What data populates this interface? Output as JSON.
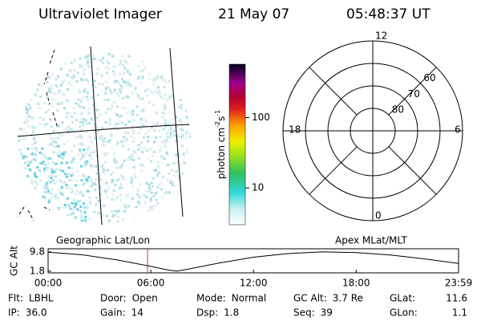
{
  "header": {
    "title": "Ultraviolet Imager",
    "date": "21 May 07",
    "time": "05:48:37 UT"
  },
  "colorbar": {
    "label": [
      "photon cm",
      "-2",
      "s",
      "-1"
    ],
    "scale": "log",
    "lim": [
      3,
      575
    ],
    "ticks": [
      10,
      100
    ]
  },
  "polar": {
    "lat_lim": [
      50,
      90
    ],
    "lat_rings": [
      80,
      70,
      60
    ],
    "mlt_labels": {
      "top": "12",
      "right": "6",
      "bottom": "0",
      "left": "18"
    }
  },
  "chart_data": {
    "type": "line",
    "ylabel": "GC Alt",
    "left_label": "Geographic Lat/Lon",
    "right_label": "Apex MLat/MLT",
    "x": [
      0,
      2,
      4,
      6,
      7,
      7.5,
      8,
      10,
      12,
      14,
      16,
      18,
      20,
      22,
      23.983
    ],
    "values": [
      9.7,
      8.6,
      6.5,
      3.8,
      2.3,
      1.8,
      2.4,
      5.2,
      7.6,
      9.1,
      9.8,
      9.5,
      8.5,
      6.9,
      5.0
    ],
    "color": "#000000",
    "marker_x": 5.81,
    "marker_color": "#c04040",
    "xlim": [
      0,
      23.983
    ],
    "xticks": [
      {
        "value": 0,
        "label": "00:00"
      },
      {
        "value": 6,
        "label": "06:00"
      },
      {
        "value": 12,
        "label": "12:00"
      },
      {
        "value": 18,
        "label": "18:00"
      },
      {
        "value": 23.983,
        "label": "23:59"
      }
    ],
    "ylim": [
      1.1,
      11.1
    ],
    "yticks": [
      9.8,
      1.8
    ]
  },
  "status": [
    [
      {
        "label": "Flt:",
        "value": "LBHL"
      },
      {
        "label": "Door:",
        "value": "Open"
      },
      {
        "label": "Mode:",
        "value": "Normal"
      },
      {
        "label": "GC Alt:",
        "value": "3.7 Re"
      },
      {
        "label": "GLat:",
        "value": "11.6"
      }
    ],
    [
      {
        "label": "IP:",
        "value": "36.0"
      },
      {
        "label": "Gain:",
        "value": "14"
      },
      {
        "label": "Dsp:",
        "value": "1.8"
      },
      {
        "label": "Seq:",
        "value": "39"
      },
      {
        "label": "GLon:",
        "value": "1.1"
      }
    ]
  ]
}
